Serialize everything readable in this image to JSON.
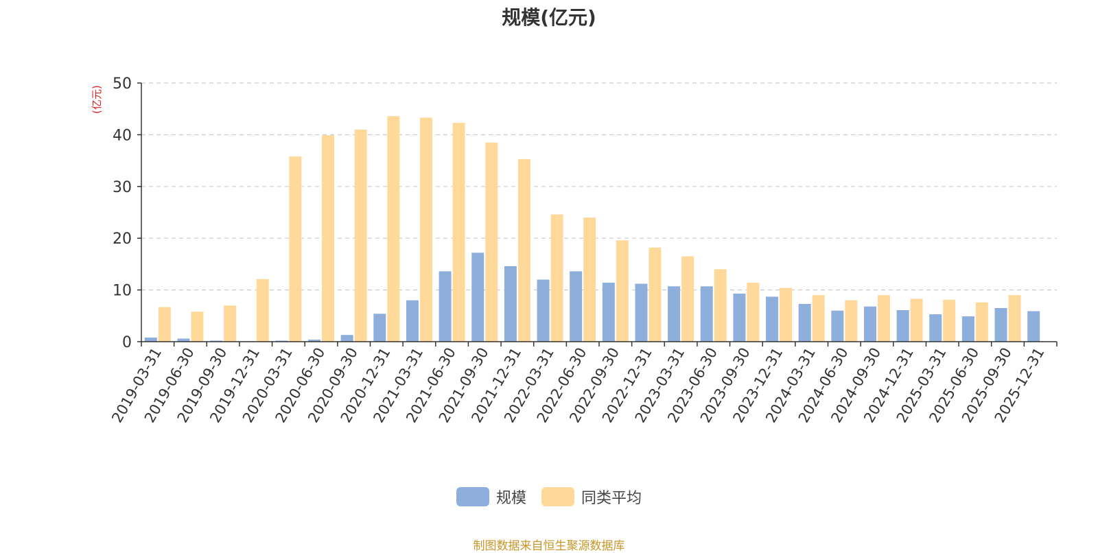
{
  "chart_data": {
    "type": "bar",
    "title": "规模(亿元)",
    "ylabel": "(亿元)",
    "ylim": [
      0,
      50
    ],
    "yticks": [
      0,
      10,
      20,
      30,
      40,
      50
    ],
    "grid": true,
    "legend_position": "bottom",
    "categories": [
      "2019-03-31",
      "2019-06-30",
      "2019-09-30",
      "2019-12-31",
      "2020-03-31",
      "2020-06-30",
      "2020-09-30",
      "2020-12-31",
      "2021-03-31",
      "2021-06-30",
      "2021-09-30",
      "2021-12-31",
      "2022-03-31",
      "2022-06-30",
      "2022-09-30",
      "2022-12-31",
      "2023-03-31",
      "2023-06-30",
      "2023-09-30",
      "2023-12-31",
      "2024-03-31",
      "2024-06-30",
      "2024-09-30",
      "2024-12-31",
      "2025-03-31",
      "2025-06-30",
      "2025-09-30",
      "2025-12-31"
    ],
    "series": [
      {
        "name": "规模",
        "color": "#8eaedb",
        "values": [
          0.8,
          0.6,
          0.2,
          0.1,
          0.2,
          0.4,
          1.3,
          5.4,
          8.0,
          13.6,
          17.2,
          14.6,
          12.0,
          13.6,
          11.4,
          11.2,
          10.7,
          10.7,
          9.3,
          8.7,
          7.3,
          6.0,
          6.8,
          6.1,
          5.3,
          4.9,
          6.5,
          5.9
        ]
      },
      {
        "name": "同类平均",
        "color": "#ffd99a",
        "values": [
          6.7,
          5.8,
          7.0,
          12.1,
          35.8,
          39.9,
          41.0,
          43.6,
          43.3,
          42.3,
          38.5,
          35.3,
          24.6,
          24.0,
          19.6,
          18.2,
          16.5,
          14.0,
          11.4,
          10.4,
          9.0,
          8.0,
          9.0,
          8.3,
          8.1,
          7.6,
          9.0,
          null
        ]
      }
    ]
  },
  "footer": {
    "source_note": "制图数据来自恒生聚源数据库"
  }
}
